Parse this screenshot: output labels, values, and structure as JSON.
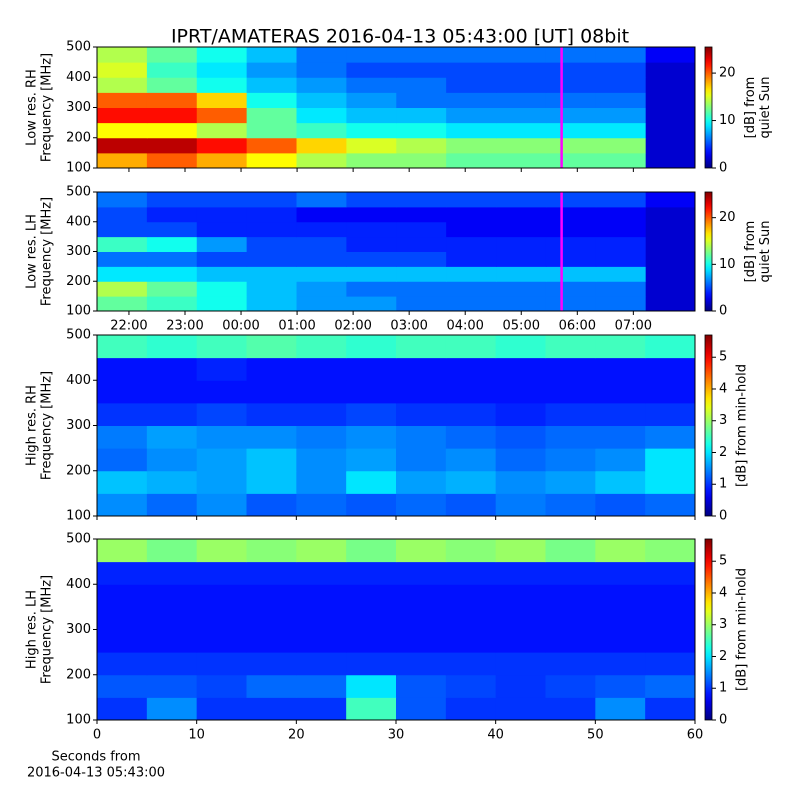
{
  "title": "IPRT/AMATERAS 2016-04-13 05:43:00 [UT]   08bit",
  "chart_data": [
    {
      "type": "heatmap",
      "colormap": "jet",
      "ylabel": [
        "Low res. RH",
        "Frequency [MHz]"
      ],
      "xlim": [
        21.43,
        32.1
      ],
      "xticks": [
        22,
        23,
        24,
        25,
        26,
        27,
        28,
        29,
        30,
        31
      ],
      "show_xticklabels": false,
      "ylim": [
        100,
        500
      ],
      "yticks": [
        100,
        200,
        300,
        400,
        500
      ],
      "x_bins": [
        21.43,
        22.32,
        23.21,
        24.1,
        24.99,
        25.88,
        26.77,
        27.66,
        28.55,
        29.44,
        30.33,
        31.22,
        32.1
      ],
      "y_bins": [
        100,
        150,
        200,
        250,
        300,
        350,
        400,
        450,
        500
      ],
      "z": [
        [
          18,
          20,
          18,
          16,
          14,
          13,
          13,
          12,
          12,
          12,
          12,
          2
        ],
        [
          24,
          24,
          22,
          20,
          17,
          15,
          14,
          13,
          13,
          13,
          13,
          2
        ],
        [
          16,
          16,
          14,
          12,
          11,
          10,
          10,
          9,
          9,
          9,
          9,
          2
        ],
        [
          22,
          22,
          20,
          12,
          9,
          8,
          8,
          7,
          7,
          7,
          7,
          2
        ],
        [
          20,
          20,
          17,
          10,
          8,
          7,
          6,
          6,
          6,
          6,
          6,
          2
        ],
        [
          14,
          12,
          10,
          8,
          7,
          6,
          6,
          5,
          5,
          5,
          5,
          2
        ],
        [
          15,
          11,
          9,
          7,
          6,
          5,
          5,
          5,
          5,
          5,
          5,
          2
        ],
        [
          14,
          12,
          10,
          8,
          6,
          6,
          6,
          6,
          6,
          6,
          6,
          3
        ]
      ],
      "marker_x": 29.72,
      "marker_color": "#ff00ff",
      "zlim": [
        0,
        25.5
      ],
      "zticks": [
        0,
        10,
        20
      ],
      "colorbar_label": [
        "[dB] from",
        "quiet Sun"
      ]
    },
    {
      "type": "heatmap",
      "colormap": "jet",
      "ylabel": [
        "Low res. LH",
        "Frequency [MHz]"
      ],
      "xlim": [
        21.43,
        32.1
      ],
      "xticks": [
        {
          "value": 22,
          "label": "22:00"
        },
        {
          "value": 23,
          "label": "23:00"
        },
        {
          "value": 24,
          "label": "00:00"
        },
        {
          "value": 25,
          "label": "01:00"
        },
        {
          "value": 26,
          "label": "02:00"
        },
        {
          "value": 27,
          "label": "03:00"
        },
        {
          "value": 28,
          "label": "04:00"
        },
        {
          "value": 29,
          "label": "05:00"
        },
        {
          "value": 30,
          "label": "06:00"
        },
        {
          "value": 31,
          "label": "07:00"
        }
      ],
      "show_xticklabels": true,
      "ylim": [
        100,
        500
      ],
      "yticks": [
        100,
        200,
        300,
        400,
        500
      ],
      "x_bins": [
        21.43,
        22.32,
        23.21,
        24.1,
        24.99,
        25.88,
        26.77,
        27.66,
        28.55,
        29.44,
        30.33,
        31.22,
        32.1
      ],
      "y_bins": [
        100,
        150,
        200,
        250,
        300,
        350,
        400,
        450,
        500
      ],
      "z": [
        [
          12,
          11,
          10,
          8,
          7,
          7,
          6,
          6,
          6,
          6,
          6,
          2
        ],
        [
          14,
          12,
          10,
          8,
          7,
          6,
          6,
          6,
          6,
          6,
          6,
          2
        ],
        [
          9,
          9,
          8,
          8,
          8,
          8,
          8,
          8,
          8,
          8,
          8,
          2
        ],
        [
          6,
          6,
          5,
          5,
          5,
          5,
          5,
          4,
          4,
          4,
          4,
          2
        ],
        [
          11,
          10,
          7,
          5,
          5,
          4,
          4,
          4,
          4,
          4,
          4,
          2
        ],
        [
          5,
          5,
          4,
          4,
          4,
          4,
          4,
          3,
          3,
          3,
          3,
          2
        ],
        [
          5,
          4,
          4,
          4,
          3,
          3,
          3,
          3,
          3,
          3,
          3,
          2
        ],
        [
          6,
          5,
          5,
          5,
          6,
          5,
          5,
          5,
          5,
          5,
          5,
          3
        ]
      ],
      "marker_x": 29.72,
      "marker_color": "#ff00ff",
      "zlim": [
        0,
        25.5
      ],
      "zticks": [
        0,
        10,
        20
      ],
      "colorbar_label": [
        "[dB] from",
        "quiet Sun"
      ]
    },
    {
      "type": "heatmap",
      "colormap": "jet",
      "ylabel": [
        "High res. RH",
        "Frequency [MHz]"
      ],
      "xlim": [
        0,
        60
      ],
      "xticks": [
        0,
        10,
        20,
        30,
        40,
        50,
        60
      ],
      "show_xticklabels": false,
      "ylim": [
        100,
        500
      ],
      "yticks": [
        100,
        200,
        300,
        400,
        500
      ],
      "x_bins": [
        0,
        5,
        10,
        15,
        20,
        25,
        30,
        35,
        40,
        45,
        50,
        55,
        60
      ],
      "y_bins": [
        100,
        150,
        200,
        250,
        300,
        350,
        400,
        450,
        500
      ],
      "z": [
        [
          1.5,
          1.3,
          1.5,
          1.2,
          1.3,
          1.2,
          1.3,
          1.2,
          1.4,
          1.3,
          1.2,
          1.3
        ],
        [
          1.8,
          1.7,
          1.6,
          1.8,
          1.5,
          2.0,
          1.6,
          1.7,
          1.5,
          1.6,
          1.8,
          2.0
        ],
        [
          1.3,
          1.5,
          1.6,
          1.8,
          1.5,
          1.6,
          1.4,
          1.5,
          1.3,
          1.4,
          1.5,
          2.0
        ],
        [
          1.4,
          1.6,
          1.5,
          1.5,
          1.4,
          1.5,
          1.4,
          1.3,
          1.2,
          1.3,
          1.3,
          1.4
        ],
        [
          1.0,
          1.0,
          1.1,
          1.0,
          1.0,
          1.1,
          1.0,
          1.0,
          0.9,
          1.0,
          1.0,
          1.0
        ],
        [
          0.8,
          0.8,
          0.8,
          0.8,
          0.8,
          0.8,
          0.8,
          0.8,
          0.8,
          0.8,
          0.8,
          0.8
        ],
        [
          0.8,
          0.8,
          0.9,
          0.8,
          0.8,
          0.8,
          0.8,
          0.8,
          0.8,
          0.8,
          0.8,
          0.8
        ],
        [
          2.5,
          2.4,
          2.5,
          2.6,
          2.5,
          2.4,
          2.5,
          2.5,
          2.4,
          2.5,
          2.5,
          2.4
        ]
      ],
      "zlim": [
        0,
        5.7
      ],
      "zticks": [
        0,
        1,
        2,
        3,
        4,
        5
      ],
      "colorbar_label": [
        "[dB] from min-hold"
      ]
    },
    {
      "type": "heatmap",
      "colormap": "jet",
      "ylabel": [
        "High res. LH",
        "Frequency [MHz]"
      ],
      "xlabel": [
        "Seconds from",
        "2016-04-13 05:43:00"
      ],
      "xlim": [
        0,
        60
      ],
      "xticks": [
        0,
        10,
        20,
        30,
        40,
        50,
        60
      ],
      "show_xticklabels": true,
      "ylim": [
        100,
        500
      ],
      "yticks": [
        100,
        200,
        300,
        400,
        500
      ],
      "x_bins": [
        0,
        5,
        10,
        15,
        20,
        25,
        30,
        35,
        40,
        45,
        50,
        55,
        60
      ],
      "y_bins": [
        100,
        150,
        200,
        250,
        300,
        350,
        400,
        450,
        500
      ],
      "z": [
        [
          1.0,
          1.5,
          1.0,
          1.0,
          1.0,
          2.5,
          1.2,
          1.0,
          1.0,
          1.0,
          1.5,
          1.0
        ],
        [
          1.2,
          1.2,
          1.1,
          1.3,
          1.3,
          2.0,
          1.2,
          1.1,
          1.0,
          1.1,
          1.2,
          1.3
        ],
        [
          1.0,
          1.0,
          1.0,
          1.0,
          1.0,
          1.0,
          1.0,
          1.0,
          1.0,
          1.0,
          1.0,
          1.0
        ],
        [
          0.8,
          0.8,
          0.8,
          0.8,
          0.8,
          0.8,
          0.8,
          0.8,
          0.8,
          0.8,
          0.8,
          0.8
        ],
        [
          0.8,
          0.8,
          0.8,
          0.8,
          0.8,
          0.8,
          0.8,
          0.8,
          0.8,
          0.8,
          0.8,
          0.8
        ],
        [
          0.8,
          0.8,
          0.8,
          0.8,
          0.8,
          0.8,
          0.8,
          0.8,
          0.8,
          0.8,
          0.8,
          0.8
        ],
        [
          0.9,
          0.9,
          0.9,
          0.9,
          0.9,
          0.9,
          0.9,
          0.9,
          0.9,
          0.9,
          0.9,
          0.9
        ],
        [
          3.0,
          2.8,
          3.0,
          2.9,
          3.0,
          2.8,
          3.0,
          2.9,
          3.0,
          2.8,
          3.0,
          2.9
        ]
      ],
      "zlim": [
        0,
        5.7
      ],
      "zticks": [
        0,
        1,
        2,
        3,
        4,
        5
      ],
      "colorbar_label": [
        "[dB] from min-hold"
      ]
    }
  ]
}
